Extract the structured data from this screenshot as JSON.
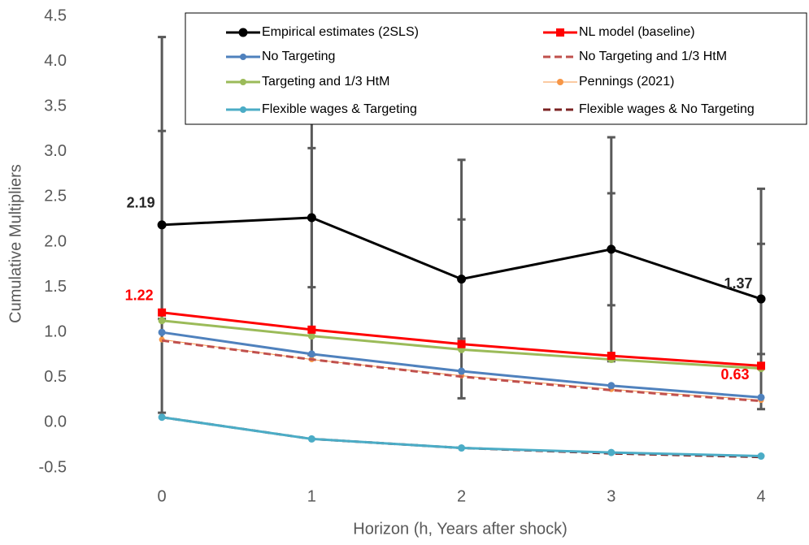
{
  "chart_data": {
    "type": "line",
    "x_label": "Horizon (h, Years after shock)",
    "y_label": "Cumulative Multipliers",
    "x": [
      0,
      1,
      2,
      3,
      4
    ],
    "xlim": [
      -0.5,
      4.32
    ],
    "xticks": [
      0,
      1,
      2,
      3,
      4
    ],
    "ylim": [
      -0.5,
      4.5
    ],
    "yticks": [
      {
        "value": -0.5,
        "label": "-0.5"
      },
      {
        "value": 0,
        "label": "0.0"
      },
      0.5,
      {
        "value": 1,
        "label": "1.0"
      },
      1.5,
      {
        "value": 2,
        "label": "2.0"
      },
      2.5,
      {
        "value": 3,
        "label": "3.0"
      },
      3.5,
      {
        "value": 4,
        "label": "4.0"
      },
      4.5
    ],
    "series": [
      {
        "name": "Empirical estimates (2SLS)",
        "color": "#000000",
        "marker": "circle",
        "dashed": false,
        "width": 3,
        "values": [
          2.19,
          2.27,
          1.59,
          1.92,
          1.37
        ],
        "ci_inner_low": [
          1.15,
          1.5,
          0.93,
          1.3,
          0.76
        ],
        "ci_inner_high": [
          3.23,
          3.04,
          2.25,
          2.54,
          1.98
        ],
        "ci_outer_low": [
          0.11,
          0.75,
          0.27,
          0.68,
          0.15
        ],
        "ci_outer_high": [
          4.27,
          3.79,
          2.91,
          3.16,
          2.59
        ]
      },
      {
        "name": "NL model (baseline)",
        "color": "#ff0000",
        "marker": "square",
        "dashed": false,
        "width": 3,
        "values": [
          1.22,
          1.03,
          0.87,
          0.74,
          0.63
        ]
      },
      {
        "name": "No Targeting",
        "color": "#4f81bd",
        "marker": "circle",
        "dashed": false,
        "width": 3,
        "values": [
          1.0,
          0.76,
          0.57,
          0.41,
          0.28
        ]
      },
      {
        "name": "No Targeting and 1/3 HtM",
        "color": "#c0504d",
        "marker": "none",
        "dashed": true,
        "width": 3,
        "values": [
          0.91,
          0.7,
          0.51,
          0.36,
          0.24
        ]
      },
      {
        "name": "Targeting and 1/3 HtM",
        "color": "#9bbb59",
        "marker": "circle",
        "dashed": false,
        "width": 3,
        "values": [
          1.13,
          0.96,
          0.81,
          0.7,
          0.6
        ]
      },
      {
        "name": "Pennings (2021)",
        "color": "#f79646",
        "marker": "circle",
        "dashed": false,
        "width": 1,
        "values": [
          0.92,
          0.7,
          0.52,
          0.37,
          0.25
        ]
      },
      {
        "name": "Flexible wages & Targeting",
        "color": "#4bacc6",
        "marker": "circle",
        "dashed": false,
        "width": 3,
        "values": [
          0.06,
          -0.18,
          -0.28,
          -0.33,
          -0.37
        ]
      },
      {
        "name": "Flexible wages & No Targeting",
        "color": "#7b2323",
        "marker": "none",
        "dashed": true,
        "width": 3,
        "values": [
          0.06,
          -0.18,
          -0.28,
          -0.34,
          -0.38
        ]
      }
    ]
  }
}
